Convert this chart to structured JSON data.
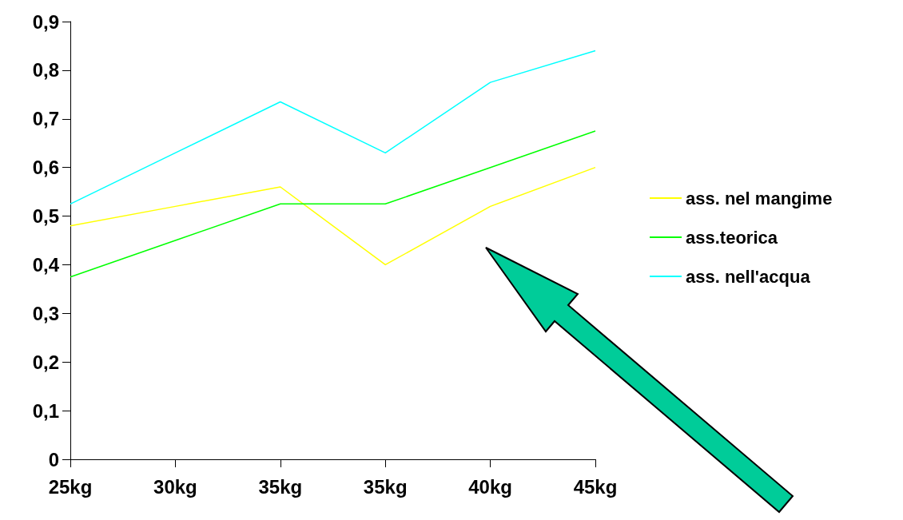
{
  "chart_data": {
    "type": "line",
    "categories": [
      "25kg",
      "30kg",
      "35kg",
      "35kg",
      "40kg",
      "45kg"
    ],
    "series": [
      {
        "name": "ass. nel mangime",
        "color": "#ffff00",
        "values": [
          0.48,
          0.52,
          0.56,
          0.4,
          0.52,
          0.6
        ]
      },
      {
        "name": "ass.teorica",
        "color": "#00ff00",
        "values": [
          0.375,
          0.45,
          0.525,
          0.525,
          0.6,
          0.675
        ]
      },
      {
        "name": "ass. nell'acqua",
        "color": "#00ffff",
        "values": [
          0.525,
          0.63,
          0.735,
          0.63,
          0.775,
          0.84
        ]
      }
    ],
    "ylim": [
      0,
      0.9
    ],
    "yticks": [
      {
        "value": 0,
        "label": "0"
      },
      {
        "value": 0.1,
        "label": "0,1"
      },
      {
        "value": 0.2,
        "label": "0,2"
      },
      {
        "value": 0.3,
        "label": "0,3"
      },
      {
        "value": 0.4,
        "label": "0,4"
      },
      {
        "value": 0.5,
        "label": "0,5"
      },
      {
        "value": 0.6,
        "label": "0,6"
      },
      {
        "value": 0.7,
        "label": "0,7"
      },
      {
        "value": 0.8,
        "label": "0,8"
      },
      {
        "value": 0.9,
        "label": "0,9"
      }
    ],
    "grid": false,
    "legend": "right",
    "marker": "none",
    "line_style": "solid"
  }
}
